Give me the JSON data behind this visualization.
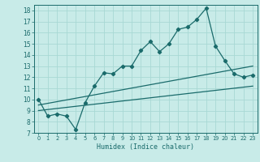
{
  "title": "",
  "xlabel": "Humidex (Indice chaleur)",
  "background_color": "#c8ebe8",
  "grid_color": "#a8d8d4",
  "line_color": "#1a6b6b",
  "xlim": [
    -0.5,
    23.5
  ],
  "ylim": [
    7,
    18.5
  ],
  "xticks": [
    0,
    1,
    2,
    3,
    4,
    5,
    6,
    7,
    8,
    9,
    10,
    11,
    12,
    13,
    14,
    15,
    16,
    17,
    18,
    19,
    20,
    21,
    22,
    23
  ],
  "yticks": [
    7,
    8,
    9,
    10,
    11,
    12,
    13,
    14,
    15,
    16,
    17,
    18
  ],
  "series1_x": [
    0,
    1,
    2,
    3,
    4,
    5,
    6,
    7,
    8,
    9,
    10,
    11,
    12,
    13,
    14,
    15,
    16,
    17,
    18,
    19,
    20,
    21,
    22,
    23
  ],
  "series1_y": [
    10.0,
    8.5,
    8.7,
    8.5,
    7.3,
    9.7,
    11.2,
    12.4,
    12.3,
    13.0,
    13.0,
    14.4,
    15.2,
    14.3,
    15.0,
    16.3,
    16.5,
    17.2,
    18.2,
    14.8,
    13.5,
    12.3,
    12.0,
    12.2
  ],
  "series2_x": [
    0,
    23
  ],
  "series2_y": [
    9.5,
    13.0
  ],
  "series3_x": [
    0,
    23
  ],
  "series3_y": [
    9.0,
    11.2
  ]
}
